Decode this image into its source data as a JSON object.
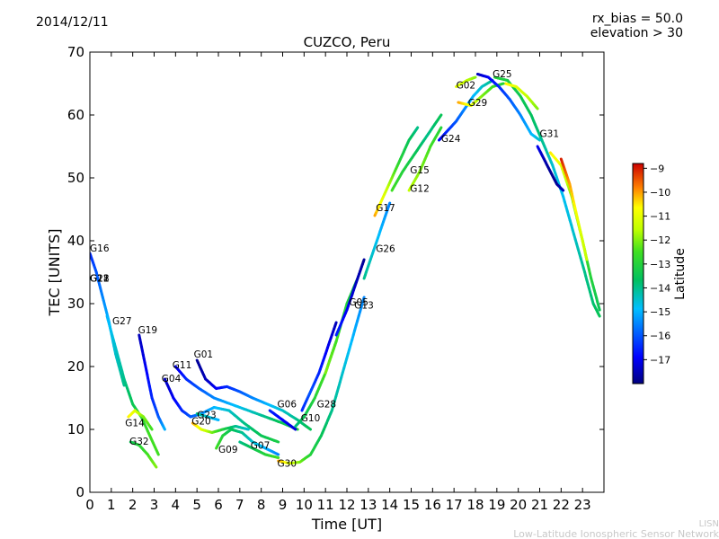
{
  "header": {
    "date": "2014/12/11",
    "rx_bias": "rx_bias = 50.0",
    "elevation": "elevation > 30"
  },
  "footer": {
    "org_short": "LISN",
    "org_long": "Low-Latitude Ionospheric Sensor Network"
  },
  "colorbar": {
    "label": "Latitude",
    "min": -18,
    "max": -8.8,
    "ticks": [
      -9,
      -10,
      -11,
      -12,
      -13,
      -14,
      -15,
      -16,
      -17
    ],
    "tick_labels": [
      "−9",
      "−10",
      "−11",
      "−12",
      "−13",
      "−14",
      "−15",
      "−16",
      "−17"
    ]
  },
  "chart_data": {
    "type": "scatter",
    "title": "CUZCO, Peru",
    "xlabel": "Time [UT]",
    "ylabel": "TEC [UNITS]",
    "xlim": [
      0,
      24
    ],
    "ylim": [
      0,
      70
    ],
    "xticks": [
      0,
      1,
      2,
      3,
      4,
      5,
      6,
      7,
      8,
      9,
      10,
      11,
      12,
      13,
      14,
      15,
      16,
      17,
      18,
      19,
      20,
      21,
      22,
      23
    ],
    "yticks": [
      0,
      10,
      20,
      30,
      40,
      50,
      60,
      70
    ],
    "grid": false,
    "series": [
      {
        "name": "G16",
        "points": [
          [
            0,
            38,
            -16.5
          ],
          [
            0.3,
            35,
            -16
          ],
          [
            0.6,
            31,
            -15.5
          ],
          [
            0.9,
            27,
            -15
          ],
          [
            1.2,
            22,
            -14.5
          ],
          [
            1.6,
            17,
            -14
          ]
        ]
      },
      {
        "name": "G27",
        "points": [
          [
            0.8,
            28,
            -15
          ],
          [
            1.2,
            23,
            -14.5
          ],
          [
            1.6,
            18,
            -14
          ],
          [
            2.0,
            14,
            -13.5
          ],
          [
            2.4,
            12,
            -13
          ],
          [
            2.8,
            9,
            -12.5
          ],
          [
            3.2,
            6,
            -12.5
          ]
        ]
      },
      {
        "name": "G19",
        "points": [
          [
            2.3,
            25,
            -17.5
          ],
          [
            2.6,
            20,
            -17
          ],
          [
            2.9,
            15,
            -16.5
          ],
          [
            3.2,
            12,
            -16
          ],
          [
            3.5,
            10,
            -15
          ]
        ]
      },
      {
        "name": "G01",
        "points": [
          [
            5.0,
            21,
            -17.8
          ],
          [
            5.4,
            18,
            -17.5
          ],
          [
            5.9,
            16.5,
            -17
          ],
          [
            6.4,
            16.8,
            -16.5
          ],
          [
            7.0,
            16,
            -16
          ],
          [
            7.6,
            15,
            -15.5
          ],
          [
            8.3,
            14,
            -15
          ],
          [
            9.0,
            13,
            -14.5
          ],
          [
            9.7,
            11.5,
            -14
          ],
          [
            10.3,
            10,
            -13.5
          ]
        ]
      },
      {
        "name": "G04",
        "points": [
          [
            3.5,
            18,
            -17.5
          ],
          [
            3.9,
            15,
            -17
          ],
          [
            4.3,
            13,
            -16.5
          ],
          [
            4.7,
            12,
            -16
          ],
          [
            5.2,
            12.5,
            -15.5
          ],
          [
            5.8,
            13.5,
            -15
          ],
          [
            6.5,
            13,
            -14.5
          ],
          [
            7.2,
            11,
            -14
          ],
          [
            8.0,
            9,
            -13.5
          ],
          [
            8.8,
            8,
            -13.2
          ]
        ]
      },
      {
        "name": "G11",
        "points": [
          [
            4.0,
            20,
            -17.2
          ],
          [
            4.5,
            18,
            -16.5
          ],
          [
            5.1,
            16.5,
            -16
          ],
          [
            5.8,
            15,
            -15.5
          ],
          [
            6.6,
            14,
            -15
          ],
          [
            7.4,
            13,
            -14.5
          ],
          [
            8.2,
            12,
            -14
          ],
          [
            9.0,
            11,
            -13.5
          ],
          [
            9.7,
            10,
            -13
          ]
        ]
      },
      {
        "name": "G06",
        "points": [
          [
            8.4,
            13,
            -16.5
          ],
          [
            8.8,
            12,
            -16.8
          ],
          [
            9.2,
            11,
            -17
          ],
          [
            9.6,
            10,
            -17.2
          ]
        ]
      },
      {
        "name": "G10",
        "points": [
          [
            9.6,
            10.5,
            -14
          ],
          [
            10.0,
            12,
            -13.5
          ],
          [
            10.5,
            15,
            -13
          ],
          [
            11.0,
            19,
            -12.5
          ],
          [
            11.5,
            24,
            -12.5
          ]
        ]
      },
      {
        "name": "G28",
        "points": [
          [
            9.9,
            13,
            -16.5
          ],
          [
            10.3,
            16,
            -16
          ],
          [
            10.7,
            19,
            -16.5
          ],
          [
            11.1,
            23,
            -17
          ],
          [
            11.5,
            27,
            -17.5
          ]
        ]
      },
      {
        "name": "G30",
        "points": [
          [
            8.8,
            5,
            -10
          ],
          [
            9.3,
            4.6,
            -11
          ],
          [
            9.8,
            4.8,
            -12
          ],
          [
            10.3,
            6,
            -13
          ],
          [
            10.8,
            9,
            -13.5
          ],
          [
            11.3,
            13,
            -14
          ],
          [
            11.8,
            19,
            -14.5
          ],
          [
            12.3,
            25,
            -15
          ],
          [
            12.8,
            31,
            -15.5
          ]
        ]
      },
      {
        "name": "G07",
        "points": [
          [
            7.0,
            8,
            -14
          ],
          [
            7.6,
            7,
            -13.5
          ],
          [
            8.2,
            6,
            -13
          ],
          [
            8.8,
            5.5,
            -12.5
          ]
        ]
      },
      {
        "name": "G09",
        "points": [
          [
            5.9,
            7,
            -12.5
          ],
          [
            6.2,
            9,
            -13
          ],
          [
            6.6,
            10,
            -13.5
          ],
          [
            7.1,
            9.5,
            -14
          ],
          [
            7.6,
            8,
            -14.5
          ],
          [
            8.2,
            7,
            -15
          ],
          [
            8.8,
            6,
            -15.5
          ]
        ]
      },
      {
        "name": "G20",
        "points": [
          [
            4.8,
            11,
            -10
          ],
          [
            5.2,
            10,
            -11
          ],
          [
            5.7,
            9.5,
            -12
          ],
          [
            6.2,
            10,
            -13
          ],
          [
            6.8,
            10.5,
            -14
          ],
          [
            7.4,
            10,
            -14.5
          ]
        ]
      },
      {
        "name": "G23",
        "points": [
          [
            5.0,
            12.5,
            -14
          ],
          [
            5.5,
            12,
            -14.5
          ],
          [
            6.0,
            11.5,
            -15
          ]
        ]
      },
      {
        "name": "G05",
        "points": [
          [
            11.0,
            19,
            -12
          ],
          [
            11.5,
            24,
            -12.5
          ],
          [
            12.0,
            30,
            -13
          ],
          [
            12.5,
            34,
            -13.5
          ]
        ]
      },
      {
        "name": "G13",
        "points": [
          [
            11.5,
            25,
            -16.5
          ],
          [
            12.0,
            29,
            -17
          ],
          [
            12.5,
            34,
            -17.5
          ],
          [
            12.8,
            37,
            -17.8
          ]
        ]
      },
      {
        "name": "G26",
        "points": [
          [
            12.8,
            34,
            -14
          ],
          [
            13.2,
            38,
            -14.5
          ],
          [
            13.6,
            42,
            -15
          ],
          [
            14.0,
            46,
            -15.5
          ]
        ]
      },
      {
        "name": "G17",
        "points": [
          [
            13.3,
            44,
            -10
          ],
          [
            13.7,
            47,
            -11
          ],
          [
            14.1,
            50,
            -12
          ],
          [
            14.5,
            53,
            -13
          ],
          [
            14.9,
            56,
            -13.5
          ],
          [
            15.3,
            58,
            -14
          ]
        ]
      },
      {
        "name": "G15",
        "points": [
          [
            14.1,
            48,
            -12.5
          ],
          [
            14.6,
            51,
            -13
          ],
          [
            15.2,
            54,
            -13.5
          ],
          [
            15.8,
            57,
            -14
          ],
          [
            16.4,
            60,
            -13.5
          ]
        ]
      },
      {
        "name": "G12",
        "points": [
          [
            14.9,
            48,
            -11.5
          ],
          [
            15.4,
            51,
            -12
          ],
          [
            15.9,
            55,
            -12.5
          ],
          [
            16.4,
            58,
            -13
          ]
        ]
      },
      {
        "name": "G24",
        "points": [
          [
            16.3,
            56,
            -17
          ],
          [
            16.7,
            57.5,
            -16.5
          ],
          [
            17.1,
            59,
            -16
          ],
          [
            17.5,
            61,
            -15.5
          ],
          [
            17.9,
            63,
            -15
          ],
          [
            18.3,
            64.5,
            -14.5
          ],
          [
            18.8,
            65.5,
            -14
          ]
        ]
      },
      {
        "name": "G29",
        "points": [
          [
            17.2,
            62,
            -10
          ],
          [
            17.8,
            61.5,
            -11
          ],
          [
            18.3,
            63,
            -12
          ],
          [
            18.8,
            64.5,
            -12.5
          ],
          [
            19.3,
            65,
            -13
          ]
        ]
      },
      {
        "name": "G02",
        "points": [
          [
            17.1,
            64.5,
            -11
          ],
          [
            17.6,
            65.5,
            -11.5
          ],
          [
            18.0,
            66,
            -12
          ]
        ]
      },
      {
        "name": "G25",
        "points": [
          [
            18.1,
            66.5,
            -17.5
          ],
          [
            18.6,
            66,
            -17
          ],
          [
            19.1,
            64.5,
            -16.5
          ],
          [
            19.6,
            62.5,
            -16
          ],
          [
            20.1,
            60,
            -15.5
          ],
          [
            20.6,
            57,
            -15
          ],
          [
            21.0,
            56,
            -14.5
          ]
        ]
      },
      {
        "name": "G31",
        "points": [
          [
            20.9,
            55,
            -17
          ],
          [
            21.2,
            53,
            -17.5
          ],
          [
            21.5,
            51,
            -17.8
          ],
          [
            21.8,
            49,
            -17.8
          ],
          [
            22.1,
            48,
            -17.5
          ]
        ]
      },
      {
        "name": "G14",
        "points": [
          [
            1.8,
            12,
            -10.5
          ],
          [
            2.1,
            13,
            -11
          ],
          [
            2.5,
            12,
            -12
          ],
          [
            2.9,
            10,
            -12.5
          ]
        ]
      },
      {
        "name": "G32",
        "points": [
          [
            1.9,
            8,
            -13.5
          ],
          [
            2.3,
            7.5,
            -13
          ],
          [
            2.7,
            6,
            -12.5
          ],
          [
            3.1,
            4,
            -12
          ]
        ]
      },
      {
        "name": "G18",
        "points": [
          [
            0,
            34,
            -16
          ]
        ]
      },
      {
        "name": "G21",
        "points": [
          [
            0,
            34,
            -15.5
          ]
        ]
      },
      {
        "name": "G22",
        "points": [
          [
            0,
            34,
            -15
          ]
        ]
      }
    ],
    "extra_curves": [
      {
        "points": [
          [
            18.9,
            66,
            -13
          ],
          [
            19.5,
            65.5,
            -13.2
          ],
          [
            20.1,
            63,
            -13.4
          ],
          [
            20.6,
            60,
            -13.6
          ],
          [
            21.1,
            56,
            -14
          ],
          [
            21.6,
            52,
            -14.5
          ],
          [
            22.1,
            47,
            -14.8
          ],
          [
            22.6,
            41,
            -14.5
          ],
          [
            23.1,
            35,
            -14
          ],
          [
            23.5,
            30,
            -13.8
          ],
          [
            23.8,
            28,
            -13.5
          ]
        ]
      },
      {
        "points": [
          [
            21.5,
            54,
            -10.5
          ],
          [
            22.0,
            52,
            -11
          ],
          [
            22.5,
            47,
            -12
          ],
          [
            23.0,
            40,
            -12.5
          ],
          [
            23.4,
            34,
            -13
          ],
          [
            23.8,
            29,
            -13.5
          ]
        ]
      },
      {
        "points": [
          [
            22.0,
            53,
            -9
          ],
          [
            22.4,
            49,
            -10
          ],
          [
            22.8,
            43,
            -11
          ],
          [
            23.2,
            37,
            -11.5
          ]
        ]
      },
      {
        "points": [
          [
            19.4,
            65,
            -10.5
          ],
          [
            19.9,
            64.5,
            -11
          ],
          [
            20.4,
            63,
            -11.5
          ],
          [
            20.9,
            61,
            -12
          ]
        ]
      }
    ],
    "annotations": [
      {
        "text": "G16",
        "x": 0.0,
        "y": 38.3
      },
      {
        "text": "G18",
        "x": 0.0,
        "y": 33.5
      },
      {
        "text": "G21",
        "x": 0.0,
        "y": 33.5
      },
      {
        "text": "G22",
        "x": 0.0,
        "y": 33.5
      },
      {
        "text": "G27",
        "x": 1.05,
        "y": 26.7
      },
      {
        "text": "G19",
        "x": 2.25,
        "y": 25.3
      },
      {
        "text": "G01",
        "x": 4.85,
        "y": 21.4
      },
      {
        "text": "G11",
        "x": 3.85,
        "y": 19.7
      },
      {
        "text": "G04",
        "x": 3.35,
        "y": 17.6
      },
      {
        "text": "G06",
        "x": 8.75,
        "y": 13.5
      },
      {
        "text": "G28",
        "x": 10.6,
        "y": 13.5
      },
      {
        "text": "G10",
        "x": 9.85,
        "y": 11.3
      },
      {
        "text": "G23",
        "x": 5.0,
        "y": 11.8
      },
      {
        "text": "G20",
        "x": 4.75,
        "y": 10.8
      },
      {
        "text": "G14",
        "x": 1.65,
        "y": 10.5
      },
      {
        "text": "G32",
        "x": 1.85,
        "y": 7.6
      },
      {
        "text": "G09",
        "x": 6.0,
        "y": 6.3
      },
      {
        "text": "G07",
        "x": 7.5,
        "y": 6.9
      },
      {
        "text": "G30",
        "x": 8.75,
        "y": 4.1
      },
      {
        "text": "G05",
        "x": 12.1,
        "y": 29.7
      },
      {
        "text": "G13",
        "x": 12.35,
        "y": 29.2
      },
      {
        "text": "G26",
        "x": 13.35,
        "y": 38.2
      },
      {
        "text": "G17",
        "x": 13.35,
        "y": 44.7
      },
      {
        "text": "G15",
        "x": 14.95,
        "y": 50.7
      },
      {
        "text": "G12",
        "x": 14.95,
        "y": 47.8
      },
      {
        "text": "G24",
        "x": 16.4,
        "y": 55.7
      },
      {
        "text": "G02",
        "x": 17.1,
        "y": 64.2
      },
      {
        "text": "G29",
        "x": 17.65,
        "y": 61.4
      },
      {
        "text": "G25",
        "x": 18.8,
        "y": 66.0
      },
      {
        "text": "G31",
        "x": 21.0,
        "y": 56.5
      }
    ]
  }
}
